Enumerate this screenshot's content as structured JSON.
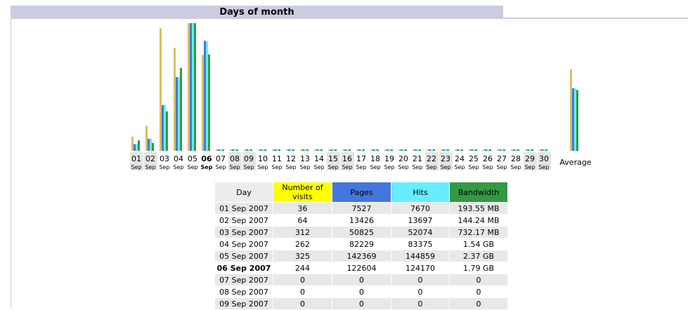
{
  "header": {
    "title": "Days of month"
  },
  "chart_data": {
    "type": "bar",
    "categories": [
      "01",
      "02",
      "03",
      "04",
      "05",
      "06",
      "07",
      "08",
      "09",
      "10",
      "11",
      "12",
      "13",
      "14",
      "15",
      "16",
      "17",
      "18",
      "19",
      "20",
      "21",
      "22",
      "23",
      "24",
      "25",
      "26",
      "27",
      "28",
      "29",
      "30"
    ],
    "sublabel": "Sep",
    "highlight_day": "06",
    "weekend_days": [
      "01",
      "02",
      "08",
      "09",
      "15",
      "16",
      "22",
      "23",
      "29",
      "30"
    ],
    "average_label": "Average",
    "series": [
      {
        "name": "Number of visits",
        "color": "#d8c060",
        "values": [
          36,
          64,
          312,
          262,
          325,
          244,
          0,
          0,
          0,
          0,
          0,
          0,
          0,
          0,
          0,
          0,
          0,
          0,
          0,
          0,
          0,
          0,
          0,
          0,
          0,
          0,
          0,
          0,
          0,
          0
        ],
        "average": 207
      },
      {
        "name": "Pages",
        "color": "#4477dd",
        "values": [
          7527,
          13426,
          50825,
          82229,
          142369,
          122604,
          0,
          0,
          0,
          0,
          0,
          0,
          0,
          0,
          0,
          0,
          0,
          0,
          0,
          0,
          0,
          0,
          0,
          0,
          0,
          0,
          0,
          0,
          0,
          0
        ],
        "average": 69830
      },
      {
        "name": "Hits",
        "color": "#66eeff",
        "values": [
          7670,
          13697,
          52074,
          83375,
          144859,
          124170,
          0,
          0,
          0,
          0,
          0,
          0,
          0,
          0,
          0,
          0,
          0,
          0,
          0,
          0,
          0,
          0,
          0,
          0,
          0,
          0,
          0,
          0,
          0,
          0
        ],
        "average": 70974
      },
      {
        "name": "Bandwidth",
        "color": "#339944",
        "values": [
          193.55,
          144.24,
          732.17,
          1540,
          2370,
          1790,
          0,
          0,
          0,
          0,
          0,
          0,
          0,
          0,
          0,
          0,
          0,
          0,
          0,
          0,
          0,
          0,
          0,
          0,
          0,
          0,
          0,
          0,
          0,
          0
        ],
        "average": 1128
      }
    ]
  },
  "table": {
    "headers": {
      "day": "Day",
      "visits_line1": "Number of",
      "visits_line2": "visits",
      "pages": "Pages",
      "hits": "Hits",
      "bandwidth": "Bandwidth"
    },
    "header_colors": {
      "visits": "#ffff00",
      "pages": "#4477dd",
      "hits": "#66eeff",
      "bandwidth": "#339944"
    },
    "rows": [
      {
        "day": "01 Sep 2007",
        "visits": "36",
        "pages": "7527",
        "hits": "7670",
        "bandwidth": "193.55 MB"
      },
      {
        "day": "02 Sep 2007",
        "visits": "64",
        "pages": "13426",
        "hits": "13697",
        "bandwidth": "144.24 MB"
      },
      {
        "day": "03 Sep 2007",
        "visits": "312",
        "pages": "50825",
        "hits": "52074",
        "bandwidth": "732.17 MB"
      },
      {
        "day": "04 Sep 2007",
        "visits": "262",
        "pages": "82229",
        "hits": "83375",
        "bandwidth": "1.54 GB"
      },
      {
        "day": "05 Sep 2007",
        "visits": "325",
        "pages": "142369",
        "hits": "144859",
        "bandwidth": "2.37 GB"
      },
      {
        "day": "06 Sep 2007",
        "visits": "244",
        "pages": "122604",
        "hits": "124170",
        "bandwidth": "1.79 GB",
        "bold": true
      },
      {
        "day": "07 Sep 2007",
        "visits": "0",
        "pages": "0",
        "hits": "0",
        "bandwidth": "0"
      },
      {
        "day": "08 Sep 2007",
        "visits": "0",
        "pages": "0",
        "hits": "0",
        "bandwidth": "0"
      },
      {
        "day": "09 Sep 2007",
        "visits": "0",
        "pages": "0",
        "hits": "0",
        "bandwidth": "0"
      }
    ]
  }
}
